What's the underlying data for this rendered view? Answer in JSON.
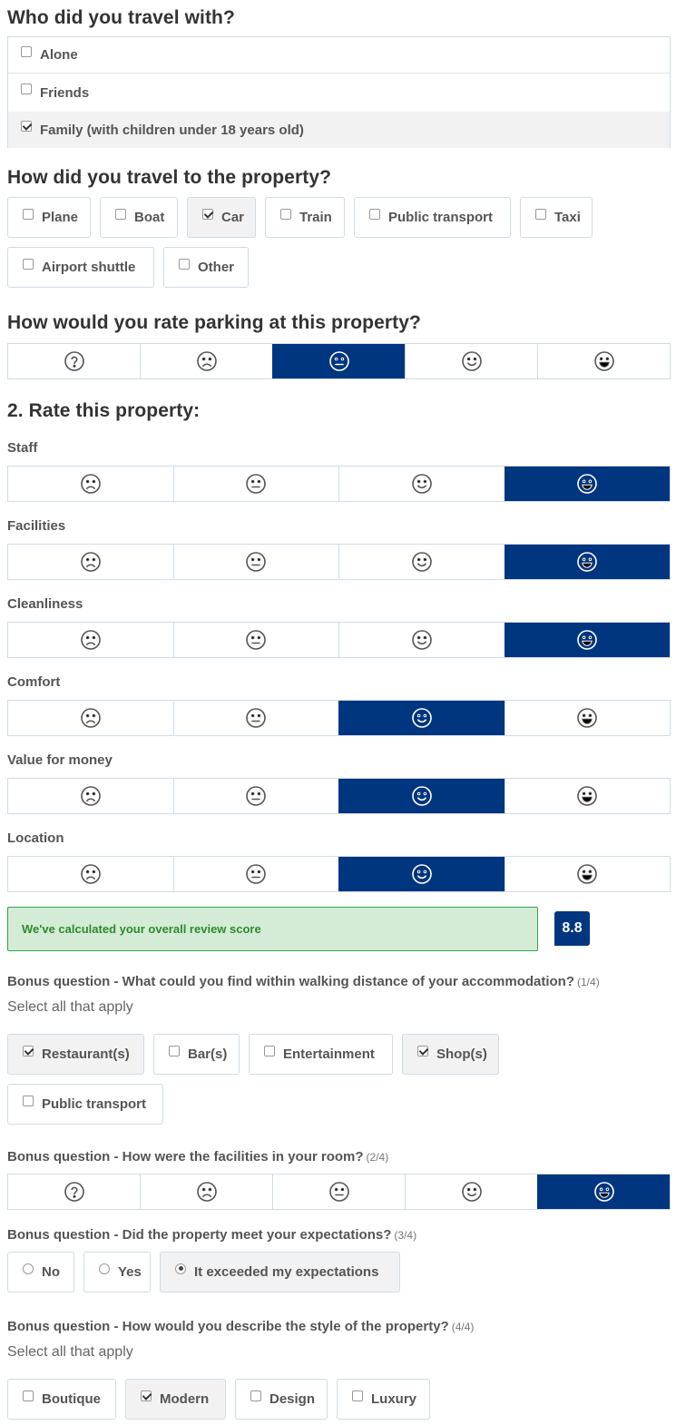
{
  "travel_with": {
    "title": "Who did you travel with?",
    "options": [
      {
        "label": "Alone",
        "checked": false
      },
      {
        "label": "Friends",
        "checked": false
      },
      {
        "label": "Family (with children under 18 years old)",
        "checked": true
      }
    ]
  },
  "transport": {
    "title": "How did you travel to the property?",
    "options": [
      {
        "label": "Plane",
        "checked": false
      },
      {
        "label": "Boat",
        "checked": false
      },
      {
        "label": "Car",
        "checked": true
      },
      {
        "label": "Train",
        "checked": false
      },
      {
        "label": "Public transport",
        "checked": false
      },
      {
        "label": "Taxi",
        "checked": false
      },
      {
        "label": "Airport shuttle",
        "checked": false
      },
      {
        "label": "Other",
        "checked": false
      }
    ]
  },
  "parking": {
    "title": "How would you rate parking at this property?",
    "icons": [
      "question-icon",
      "sad-face-icon",
      "neutral-face-icon",
      "smile-face-icon",
      "grin-face-icon"
    ],
    "selected_index": 2
  },
  "rate": {
    "title": "2. Rate this property:",
    "icons": [
      "sad-face-icon",
      "neutral-face-icon",
      "smile-face-icon",
      "grin-face-icon"
    ],
    "categories": [
      {
        "label": "Staff",
        "selected_index": 3
      },
      {
        "label": "Facilities",
        "selected_index": 3
      },
      {
        "label": "Cleanliness",
        "selected_index": 3
      },
      {
        "label": "Comfort",
        "selected_index": 2
      },
      {
        "label": "Value for money",
        "selected_index": 2
      },
      {
        "label": "Location",
        "selected_index": 2
      }
    ]
  },
  "score": {
    "message": "We've calculated your overall review score",
    "value": "8.8"
  },
  "bonus1": {
    "question": "Bonus question - What could you find within walking distance of your accommodation?",
    "counter": "(1/4)",
    "hint": "Select all that apply",
    "options": [
      {
        "label": "Restaurant(s)",
        "checked": true
      },
      {
        "label": "Bar(s)",
        "checked": false
      },
      {
        "label": "Entertainment",
        "checked": false
      },
      {
        "label": "Shop(s)",
        "checked": true
      },
      {
        "label": "Public transport",
        "checked": false
      }
    ]
  },
  "bonus2": {
    "question": "Bonus question - How were the facilities in your room?",
    "counter": "(2/4)",
    "icons": [
      "question-icon",
      "sad-face-icon",
      "neutral-face-icon",
      "smile-face-icon",
      "grin-face-icon"
    ],
    "selected_index": 4
  },
  "bonus3": {
    "question": "Bonus question - Did the property meet your expectations?",
    "counter": "(3/4)",
    "options": [
      {
        "label": "No",
        "checked": false
      },
      {
        "label": "Yes",
        "checked": false
      },
      {
        "label": "It exceeded my expectations",
        "checked": true
      }
    ]
  },
  "bonus4": {
    "question": "Bonus question - How would you describe the style of the property?",
    "counter": "(4/4)",
    "hint": "Select all that apply",
    "options": [
      {
        "label": "Boutique",
        "checked": false
      },
      {
        "label": "Modern",
        "checked": true
      },
      {
        "label": "Design",
        "checked": false
      },
      {
        "label": "Luxury",
        "checked": false
      }
    ]
  },
  "colors": {
    "selected": "#003580",
    "border": "#cfdce8",
    "score_bg": "#d4ecd6",
    "score_text": "#2d8a2d"
  }
}
